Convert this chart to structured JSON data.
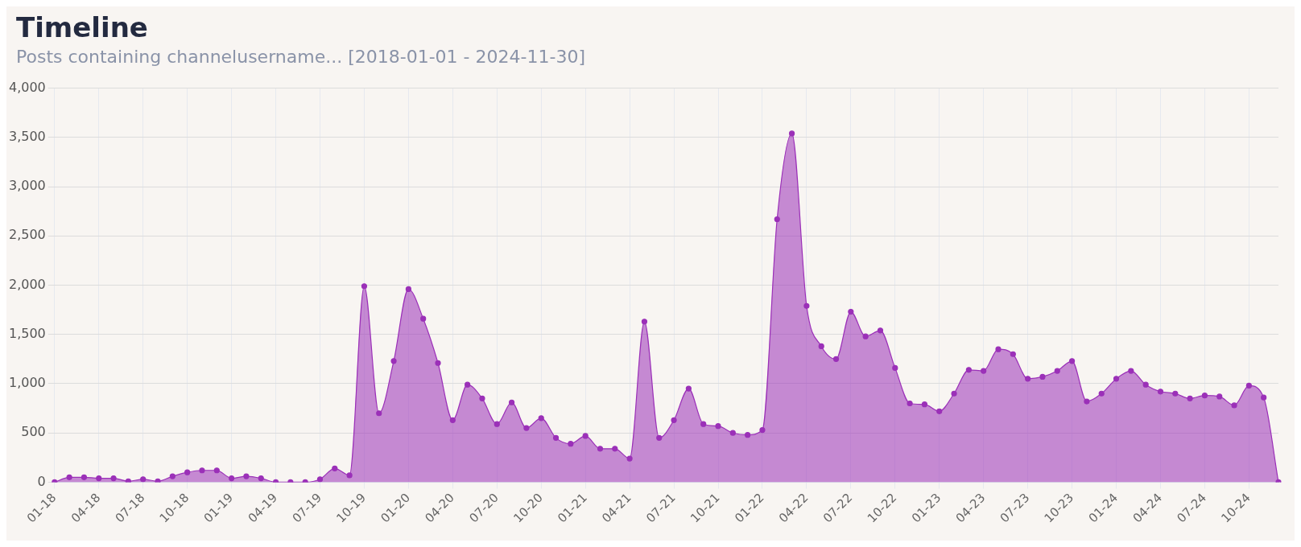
{
  "chart_data": {
    "type": "area",
    "title": "Timeline",
    "subtitle": "Posts containing channelusername... [2018-01-01 - 2024-11-30]",
    "categories": [
      "01-18",
      null,
      null,
      "04-18",
      null,
      null,
      "07-18",
      null,
      null,
      "10-18",
      null,
      null,
      "01-19",
      null,
      null,
      "04-19",
      null,
      null,
      "07-19",
      null,
      null,
      "10-19",
      null,
      null,
      "01-20",
      null,
      null,
      "04-20",
      null,
      null,
      "07-20",
      null,
      null,
      "10-20",
      null,
      null,
      "01-21",
      null,
      null,
      "04-21",
      null,
      null,
      "07-21",
      null,
      null,
      "10-21",
      null,
      null,
      "01-22",
      null,
      null,
      "04-22",
      null,
      null,
      "07-22",
      null,
      null,
      "10-22",
      null,
      null,
      "01-23",
      null,
      null,
      "04-23",
      null,
      null,
      "07-23",
      null,
      null,
      "10-23",
      null,
      null,
      "01-24",
      null,
      null,
      "04-24",
      null,
      null,
      "07-24",
      null,
      null,
      "10-24",
      null,
      null
    ],
    "series": [
      {
        "color": "#9b30b8",
        "values": [
          0,
          50,
          50,
          40,
          40,
          10,
          30,
          10,
          60,
          100,
          120,
          120,
          40,
          60,
          40,
          0,
          0,
          0,
          30,
          140,
          70,
          1990,
          700,
          1230,
          1960,
          1660,
          1210,
          630,
          990,
          850,
          590,
          810,
          550,
          650,
          450,
          390,
          470,
          340,
          340,
          240,
          1630,
          450,
          630,
          950,
          590,
          570,
          500,
          480,
          530,
          2670,
          3540,
          1790,
          1380,
          1250,
          1730,
          1480,
          1540,
          1160,
          800,
          790,
          720,
          900,
          1140,
          1130,
          1350,
          1300,
          1050,
          1070,
          1130,
          1230,
          820,
          900,
          1050,
          1130,
          990,
          920,
          900,
          850,
          880,
          870,
          780,
          980,
          860,
          0
        ]
      }
    ],
    "ylim": [
      0,
      4000
    ],
    "yticks": [
      0,
      500,
      {
        "value": 1000,
        "label": "1,000"
      },
      {
        "value": 1500,
        "label": "1,500"
      },
      {
        "value": 2000,
        "label": "2,000"
      },
      {
        "value": 2500,
        "label": "2,500"
      },
      {
        "value": 3000,
        "label": "3,000"
      },
      {
        "value": 3500,
        "label": "3,500"
      },
      {
        "value": 4000,
        "label": "4,000"
      }
    ],
    "grid": true,
    "marker": "circle",
    "line_style": "solid"
  }
}
